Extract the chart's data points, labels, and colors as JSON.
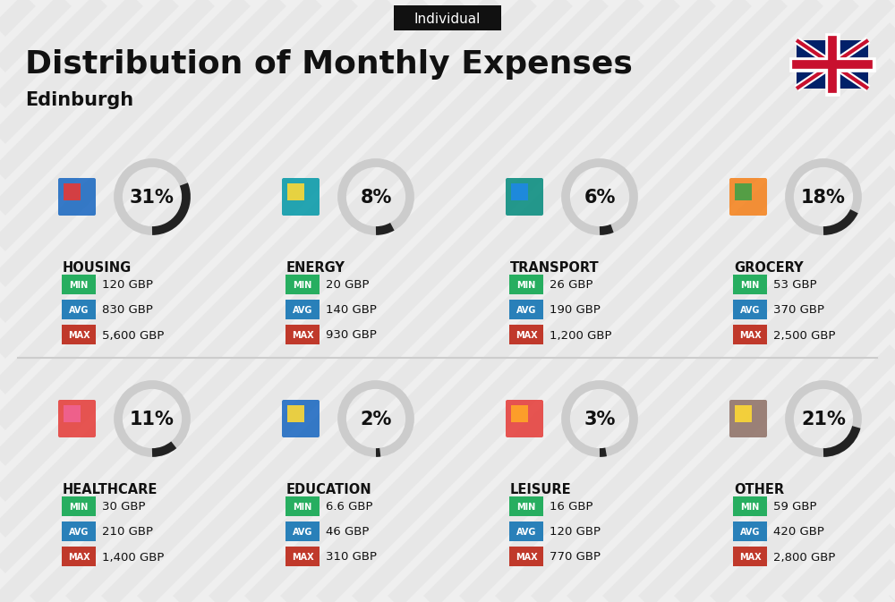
{
  "title": "Distribution of Monthly Expenses",
  "subtitle": "Edinburgh",
  "tag": "Individual",
  "bg_color": "#efefef",
  "categories": [
    {
      "name": "HOUSING",
      "pct": 31,
      "min_val": "120 GBP",
      "avg_val": "830 GBP",
      "max_val": "5,600 GBP",
      "row": 0,
      "col": 0
    },
    {
      "name": "ENERGY",
      "pct": 8,
      "min_val": "20 GBP",
      "avg_val": "140 GBP",
      "max_val": "930 GBP",
      "row": 0,
      "col": 1
    },
    {
      "name": "TRANSPORT",
      "pct": 6,
      "min_val": "26 GBP",
      "avg_val": "190 GBP",
      "max_val": "1,200 GBP",
      "row": 0,
      "col": 2
    },
    {
      "name": "GROCERY",
      "pct": 18,
      "min_val": "53 GBP",
      "avg_val": "370 GBP",
      "max_val": "2,500 GBP",
      "row": 0,
      "col": 3
    },
    {
      "name": "HEALTHCARE",
      "pct": 11,
      "min_val": "30 GBP",
      "avg_val": "210 GBP",
      "max_val": "1,400 GBP",
      "row": 1,
      "col": 0
    },
    {
      "name": "EDUCATION",
      "pct": 2,
      "min_val": "6.6 GBP",
      "avg_val": "46 GBP",
      "max_val": "310 GBP",
      "row": 1,
      "col": 1
    },
    {
      "name": "LEISURE",
      "pct": 3,
      "min_val": "16 GBP",
      "avg_val": "120 GBP",
      "max_val": "770 GBP",
      "row": 1,
      "col": 2
    },
    {
      "name": "OTHER",
      "pct": 21,
      "min_val": "59 GBP",
      "avg_val": "420 GBP",
      "max_val": "2,800 GBP",
      "row": 1,
      "col": 3
    }
  ],
  "color_min": "#27ae60",
  "color_avg": "#2980b9",
  "color_max": "#c0392b",
  "donut_dark": "#222222",
  "donut_light": "#cccccc",
  "stripe_color": "#e4e4e4",
  "title_fontsize": 26,
  "subtitle_fontsize": 15,
  "tag_fontsize": 11,
  "cat_fontsize": 10.5,
  "val_fontsize": 9.5,
  "pct_fontsize": 15
}
